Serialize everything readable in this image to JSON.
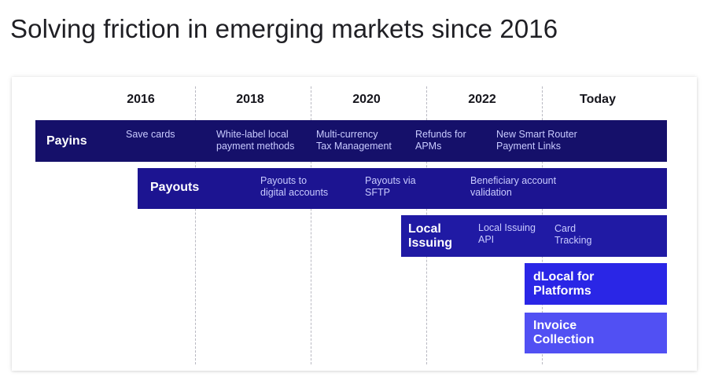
{
  "title": "Solving friction in emerging markets since 2016",
  "timeline": {
    "years": [
      "2016",
      "2018",
      "2020",
      "2022",
      "Today"
    ]
  },
  "colors": {
    "navy": "#15106a",
    "dark_blue": "#1c1491",
    "local_issuing": "#201aa4",
    "platforms": "#2a26e6",
    "invoice": "#5150f3",
    "feature_text": "#c9cbff"
  },
  "products": [
    {
      "name": "Payins",
      "features": [
        "Save cards",
        "White-label local\npayment methods",
        "Multi-currency\nTax Management",
        "Refunds for\nAPMs",
        "New Smart Router\nPayment Links"
      ]
    },
    {
      "name": "Payouts",
      "features": [
        "Payouts to\ndigital accounts",
        "Payouts via\nSFTP",
        "Beneficiary account\nvalidation"
      ]
    },
    {
      "name": "Local\nIssuing",
      "features": [
        "Local Issuing\nAPI",
        "Card\nTracking"
      ]
    },
    {
      "name": "dLocal for\nPlatforms",
      "features": []
    },
    {
      "name": "Invoice\nCollection",
      "features": []
    }
  ]
}
